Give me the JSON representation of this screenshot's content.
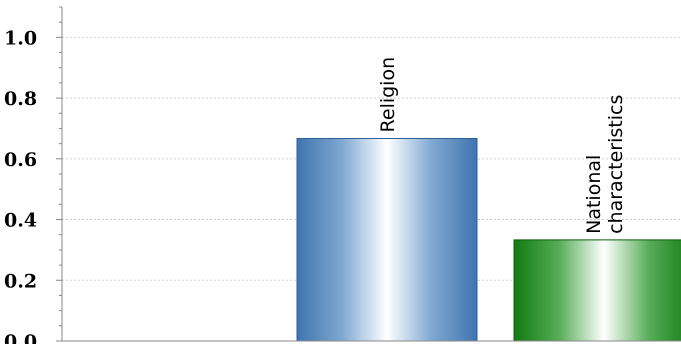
{
  "chart_data": {
    "type": "bar",
    "categories": [
      "",
      "Religion",
      "National characteristics"
    ],
    "label_lines": [
      [],
      [
        "Religion"
      ],
      [
        "National",
        "characteristics"
      ]
    ],
    "values": [
      0,
      0.667,
      0.333
    ],
    "ylim": [
      0,
      1.1
    ],
    "yticks": [
      0.0,
      0.2,
      0.4,
      0.6,
      0.8,
      1.0
    ],
    "ytick_labels": [
      "0.0",
      "0.2",
      "0.4",
      "0.6",
      "0.8",
      "1.0"
    ],
    "grid": true,
    "legend": "none",
    "bar_colors": [
      "#5b8fc4",
      "#5b8fc4",
      "#1f8a1f"
    ],
    "title": "",
    "xlabel": "",
    "ylabel": ""
  }
}
